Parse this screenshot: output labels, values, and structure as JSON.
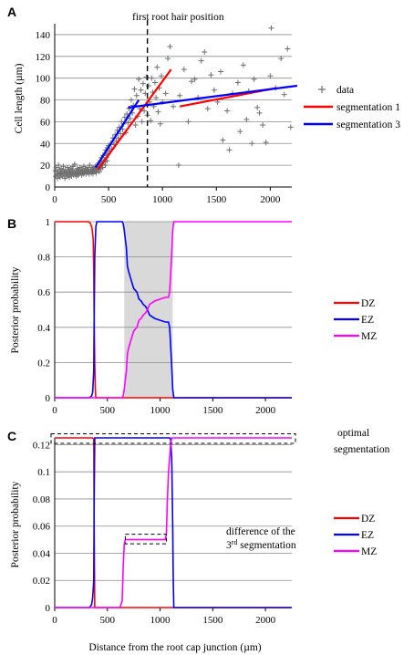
{
  "chart_data": [
    {
      "panel": "A",
      "type": "scatter",
      "ylabel": "Cell length (µm)",
      "xlim": [
        0,
        2200
      ],
      "ylim": [
        0,
        150
      ],
      "xticks": [
        0,
        500,
        1000,
        1500,
        2000
      ],
      "yticks": [
        0,
        20,
        40,
        60,
        80,
        100,
        120,
        140
      ],
      "grid": true,
      "legend_position": "right",
      "annotation": "first root hair position",
      "annotation_x": 860,
      "points": [
        [
          5,
          15
        ],
        [
          10,
          10
        ],
        [
          15,
          18
        ],
        [
          20,
          12
        ],
        [
          25,
          8
        ],
        [
          30,
          14
        ],
        [
          35,
          20
        ],
        [
          40,
          11
        ],
        [
          45,
          16
        ],
        [
          50,
          9
        ],
        [
          55,
          13
        ],
        [
          60,
          17
        ],
        [
          65,
          12
        ],
        [
          70,
          10
        ],
        [
          75,
          15
        ],
        [
          80,
          19
        ],
        [
          85,
          11
        ],
        [
          90,
          14
        ],
        [
          95,
          8
        ],
        [
          100,
          16
        ],
        [
          105,
          12
        ],
        [
          110,
          10
        ],
        [
          115,
          13
        ],
        [
          120,
          18
        ],
        [
          125,
          11
        ],
        [
          130,
          15
        ],
        [
          135,
          9
        ],
        [
          140,
          14
        ],
        [
          145,
          17
        ],
        [
          150,
          12
        ],
        [
          155,
          10
        ],
        [
          160,
          16
        ],
        [
          165,
          13
        ],
        [
          170,
          19
        ],
        [
          175,
          11
        ],
        [
          180,
          14
        ],
        [
          185,
          21
        ],
        [
          190,
          12
        ],
        [
          195,
          15
        ],
        [
          200,
          10
        ],
        [
          205,
          13
        ],
        [
          210,
          17
        ],
        [
          215,
          11
        ],
        [
          220,
          16
        ],
        [
          225,
          14
        ],
        [
          230,
          12
        ],
        [
          235,
          18
        ],
        [
          240,
          13
        ],
        [
          245,
          15
        ],
        [
          250,
          11
        ],
        [
          255,
          16
        ],
        [
          260,
          14
        ],
        [
          265,
          12
        ],
        [
          270,
          19
        ],
        [
          275,
          13
        ],
        [
          280,
          15
        ],
        [
          285,
          17
        ],
        [
          290,
          12
        ],
        [
          295,
          14
        ],
        [
          300,
          16
        ],
        [
          305,
          13
        ],
        [
          310,
          18
        ],
        [
          315,
          15
        ],
        [
          320,
          12
        ],
        [
          325,
          20
        ],
        [
          330,
          14
        ],
        [
          335,
          16
        ],
        [
          340,
          13
        ],
        [
          345,
          18
        ],
        [
          350,
          15
        ],
        [
          355,
          12
        ],
        [
          360,
          17
        ],
        [
          365,
          14
        ],
        [
          370,
          16
        ],
        [
          375,
          19
        ],
        [
          380,
          15
        ],
        [
          385,
          13
        ],
        [
          390,
          17
        ],
        [
          395,
          20
        ],
        [
          400,
          18
        ],
        [
          405,
          16
        ],
        [
          410,
          22
        ],
        [
          415,
          14
        ],
        [
          420,
          19
        ],
        [
          425,
          24
        ],
        [
          430,
          17
        ],
        [
          435,
          27
        ],
        [
          440,
          21
        ],
        [
          445,
          18
        ],
        [
          450,
          29
        ],
        [
          455,
          23
        ],
        [
          460,
          25
        ],
        [
          465,
          31
        ],
        [
          470,
          20
        ],
        [
          475,
          34
        ],
        [
          480,
          27
        ],
        [
          485,
          24
        ],
        [
          490,
          36
        ],
        [
          495,
          30
        ],
        [
          500,
          38
        ],
        [
          510,
          33
        ],
        [
          520,
          40
        ],
        [
          530,
          35
        ],
        [
          540,
          45
        ],
        [
          550,
          39
        ],
        [
          560,
          48
        ],
        [
          570,
          42
        ],
        [
          580,
          52
        ],
        [
          590,
          45
        ],
        [
          600,
          55
        ],
        [
          610,
          49
        ],
        [
          620,
          60
        ],
        [
          630,
          53
        ],
        [
          640,
          58
        ],
        [
          650,
          64
        ],
        [
          660,
          50
        ],
        [
          670,
          67
        ],
        [
          680,
          59
        ],
        [
          690,
          72
        ],
        [
          700,
          63
        ],
        [
          710,
          80
        ],
        [
          720,
          68
        ],
        [
          730,
          75
        ],
        [
          740,
          90
        ],
        [
          750,
          57
        ],
        [
          760,
          84
        ],
        [
          770,
          65
        ],
        [
          780,
          99
        ],
        [
          790,
          72
        ],
        [
          800,
          89
        ],
        [
          810,
          60
        ],
        [
          820,
          95
        ],
        [
          830,
          70
        ],
        [
          840,
          86
        ],
        [
          850,
          101
        ],
        [
          860,
          66
        ],
        [
          870,
          93
        ],
        [
          880,
          78
        ],
        [
          890,
          61
        ],
        [
          900,
          100
        ],
        [
          910,
          87
        ],
        [
          920,
          74
        ],
        [
          930,
          96
        ],
        [
          940,
          82
        ],
        [
          950,
          110
        ],
        [
          960,
          69
        ],
        [
          970,
          91
        ],
        [
          980,
          58
        ],
        [
          990,
          102
        ],
        [
          1000,
          78
        ],
        [
          1030,
          86
        ],
        [
          1050,
          118
        ],
        [
          1070,
          129
        ],
        [
          1100,
          74
        ],
        [
          1150,
          20
        ],
        [
          1160,
          84
        ],
        [
          1200,
          108
        ],
        [
          1240,
          60
        ],
        [
          1270,
          97
        ],
        [
          1300,
          99
        ],
        [
          1330,
          82
        ],
        [
          1360,
          116
        ],
        [
          1390,
          124
        ],
        [
          1420,
          72
        ],
        [
          1450,
          103
        ],
        [
          1480,
          89
        ],
        [
          1510,
          78
        ],
        [
          1540,
          106
        ],
        [
          1560,
          43
        ],
        [
          1600,
          70
        ],
        [
          1620,
          34
        ],
        [
          1650,
          86
        ],
        [
          1700,
          96
        ],
        [
          1720,
          51
        ],
        [
          1750,
          112
        ],
        [
          1780,
          62
        ],
        [
          1800,
          88
        ],
        [
          1830,
          40
        ],
        [
          1850,
          99
        ],
        [
          1880,
          73
        ],
        [
          1900,
          68
        ],
        [
          1930,
          57
        ],
        [
          1960,
          41
        ],
        [
          2000,
          102
        ],
        [
          2010,
          146
        ],
        [
          2050,
          91
        ],
        [
          2100,
          118
        ],
        [
          2130,
          85
        ],
        [
          2160,
          127
        ],
        [
          2190,
          55
        ]
      ],
      "lines": [
        {
          "name": "segmentation 1",
          "color": "#ff0000",
          "segments": [
            [
              [
                400,
                16
              ],
              [
                1080,
                108
              ]
            ],
            [
              [
                1160,
                74
              ],
              [
                2060,
                91
              ]
            ]
          ]
        },
        {
          "name": "segmentation 3",
          "color": "#0000ff",
          "segments": [
            [
              [
                380,
                18
              ],
              [
                780,
                80
              ]
            ],
            [
              [
                680,
                73
              ],
              [
                2250,
                93
              ]
            ]
          ]
        }
      ],
      "legend": [
        {
          "label": "data",
          "marker": "plus",
          "color": "#707070"
        },
        {
          "label": "segmentation 1",
          "marker": "line",
          "color": "#ff0000"
        },
        {
          "label": "segmentation 3",
          "marker": "line",
          "color": "#0000ff"
        }
      ]
    },
    {
      "panel": "B",
      "type": "line",
      "ylabel": "Posterior probability",
      "xlim": [
        0,
        2250
      ],
      "ylim": [
        0,
        1
      ],
      "xticks": [
        0,
        500,
        1000,
        1500,
        2000
      ],
      "yticks": [
        0,
        0.2,
        0.4,
        0.6,
        0.8,
        1
      ],
      "ytick_labels": [
        "0",
        "0.2",
        "0.4",
        "0.6",
        "0.8",
        "1"
      ],
      "grid": true,
      "legend_position": "right",
      "shaded_region": [
        660,
        1120
      ],
      "series": [
        {
          "name": "DZ",
          "color": "#ff0000",
          "x": [
            0,
            320,
            340,
            355,
            365,
            370,
            375,
            380,
            385,
            390,
            400,
            2250
          ],
          "values": [
            1,
            1,
            0.99,
            0.96,
            0.9,
            0.7,
            0.45,
            0.2,
            0.05,
            0,
            0,
            0
          ]
        },
        {
          "name": "EZ",
          "color": "#0000ff",
          "x": [
            0,
            330,
            350,
            360,
            370,
            375,
            380,
            390,
            400,
            410,
            640,
            650,
            660,
            670,
            680,
            690,
            700,
            720,
            740,
            750,
            780,
            800,
            820,
            840,
            860,
            880,
            900,
            950,
            1000,
            1050,
            1080,
            1090,
            1100,
            1110,
            1120,
            1130,
            2250
          ],
          "values": [
            0,
            0,
            0.01,
            0.03,
            0.15,
            0.45,
            0.8,
            0.97,
            1,
            1,
            1,
            0.99,
            0.95,
            0.9,
            0.85,
            0.75,
            0.72,
            0.68,
            0.64,
            0.62,
            0.6,
            0.56,
            0.55,
            0.53,
            0.52,
            0.5,
            0.47,
            0.45,
            0.44,
            0.43,
            0.43,
            0.4,
            0.3,
            0.18,
            0.05,
            0,
            0
          ]
        },
        {
          "name": "MZ",
          "color": "#ff00ff",
          "x": [
            0,
            640,
            650,
            660,
            670,
            680,
            690,
            700,
            720,
            740,
            750,
            780,
            800,
            820,
            840,
            860,
            880,
            900,
            950,
            1000,
            1050,
            1080,
            1090,
            1100,
            1110,
            1120,
            1130,
            2250
          ],
          "values": [
            0,
            0,
            0.01,
            0.05,
            0.1,
            0.15,
            0.25,
            0.28,
            0.32,
            0.36,
            0.38,
            0.4,
            0.44,
            0.45,
            0.47,
            0.48,
            0.5,
            0.53,
            0.55,
            0.56,
            0.57,
            0.57,
            0.6,
            0.7,
            0.82,
            0.95,
            1,
            1
          ]
        }
      ]
    },
    {
      "panel": "C",
      "type": "line",
      "xlabel": "Distance from the root cap junction (µm)",
      "ylabel": "Posterior probability",
      "xlim": [
        0,
        2250
      ],
      "ylim": [
        0,
        0.125
      ],
      "xticks": [
        0,
        500,
        1000,
        1500,
        2000
      ],
      "yticks": [
        0,
        0.02,
        0.04,
        0.06,
        0.08,
        0.1,
        0.12
      ],
      "ytick_labels": [
        "0",
        "0.02",
        "0.04",
        "0.06",
        "0.08",
        "0.1",
        "0.12"
      ],
      "grid": true,
      "legend_position": "right",
      "annotations": [
        "optimal segmentation",
        "difference of the 3rd segmentation"
      ],
      "series": [
        {
          "name": "DZ",
          "color": "#ff0000",
          "x": [
            0,
            360,
            370,
            375,
            380,
            2250
          ],
          "values": [
            0.125,
            0.125,
            0.124,
            0.06,
            0,
            0
          ]
        },
        {
          "name": "EZ",
          "color": "#0000ff",
          "x": [
            0,
            330,
            350,
            360,
            370,
            375,
            380,
            1090,
            1100,
            1110,
            1120,
            1125,
            1130,
            2250
          ],
          "values": [
            0,
            0,
            0.002,
            0.007,
            0.02,
            0.08,
            0.125,
            0.125,
            0.124,
            0.11,
            0.06,
            0.02,
            0,
            0
          ]
        },
        {
          "name": "MZ",
          "color": "#ff00ff",
          "x": [
            0,
            620,
            640,
            650,
            660,
            670,
            1050,
            1060,
            1070,
            1080,
            1090,
            1100,
            1110,
            2250
          ],
          "values": [
            0,
            0,
            0.005,
            0.03,
            0.047,
            0.05,
            0.05,
            0.055,
            0.08,
            0.1,
            0.11,
            0.12,
            0.125,
            0.125
          ]
        }
      ]
    }
  ]
}
